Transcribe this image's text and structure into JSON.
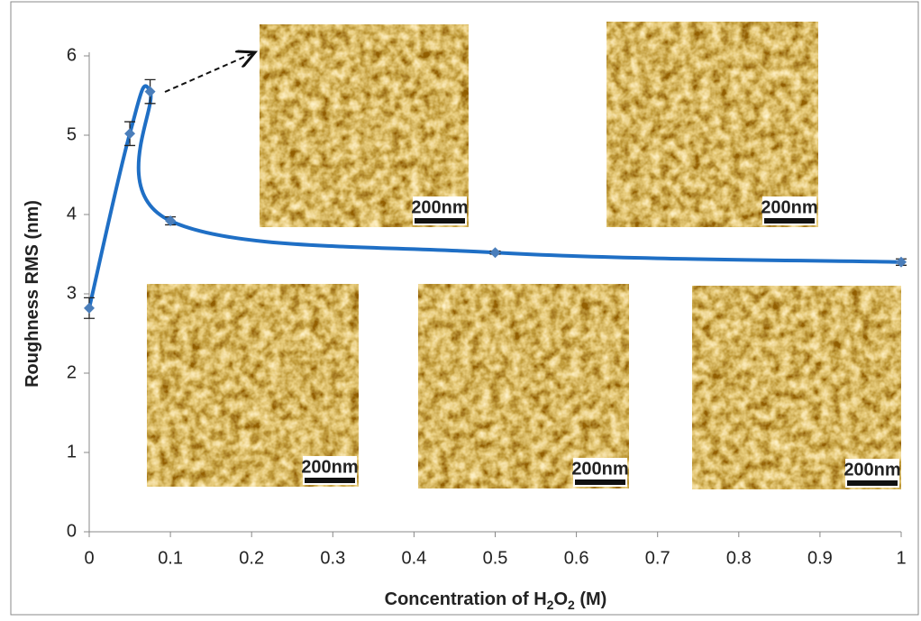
{
  "chart_data": {
    "type": "line",
    "xlabel": [
      "Concentration of H",
      "2",
      "O",
      "2",
      " (M)"
    ],
    "ylabel": "Roughness RMS (nm)",
    "series": [
      {
        "color": "#1f6fc5",
        "x": [
          0,
          0.05,
          0.075,
          0.1,
          0.5,
          1
        ],
        "values": [
          2.82,
          5.02,
          5.55,
          3.92,
          3.52,
          3.4
        ],
        "errors": [
          0.13,
          0.15,
          0.15,
          0.05,
          0.02,
          0.04
        ]
      }
    ],
    "xlim": [
      0,
      1
    ],
    "xticks": [
      0,
      0.1,
      0.2,
      0.3,
      0.4,
      0.5,
      0.6,
      0.7,
      0.8,
      0.9,
      1
    ],
    "ylim": [
      0,
      6
    ],
    "yticks": [
      0,
      1,
      2,
      3,
      4,
      5,
      6
    ],
    "images": [
      {
        "scale_label": "200nm"
      },
      {
        "scale_label": "200nm"
      },
      {
        "scale_label": "200nm"
      },
      {
        "scale_label": "200nm"
      },
      {
        "scale_label": "200nm"
      }
    ]
  }
}
